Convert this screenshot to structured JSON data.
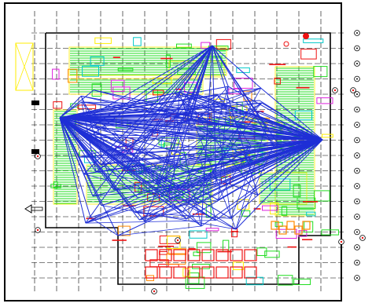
{
  "drawing": {
    "kind": "cad-floor-plan",
    "background": "#ffffff",
    "frame_color": "#000000",
    "grid_color": "#000000",
    "overlay_color": "#1f2fd6",
    "layer_colors": {
      "green": "#22dd22",
      "yellow": "#ffee00",
      "red": "#ee1111",
      "orange": "#ff8800",
      "cyan": "#00c8c8",
      "magenta": "#dd22dd"
    },
    "grid_bubble_count_right": 17,
    "vertical_dash_count": 14,
    "hub_count": 3,
    "overlay_description_hidden": true
  }
}
